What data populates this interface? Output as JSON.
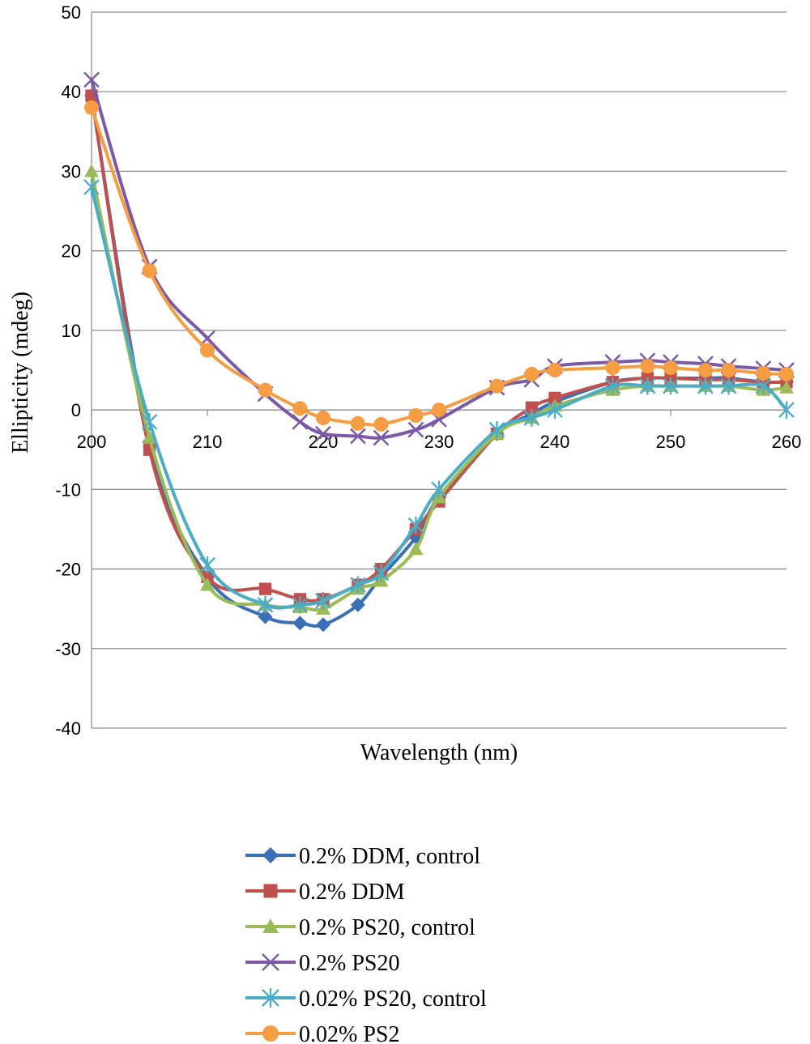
{
  "chart_data": {
    "type": "line",
    "xlabel": "Wavelength (nm)",
    "ylabel": "Ellipticity (mdeg)",
    "xlim": [
      200,
      260
    ],
    "ylim": [
      -40,
      50
    ],
    "x_ticks": [
      200,
      210,
      220,
      230,
      240,
      250,
      260
    ],
    "y_ticks": [
      50,
      40,
      30,
      20,
      10,
      0,
      -10,
      -20,
      -30,
      -40
    ],
    "grid": "horizontal",
    "legend_position": "bottom",
    "series": [
      {
        "name": "0.2% DDM, control",
        "color": "#3a6fb5",
        "marker": "diamond",
        "x": [
          200,
          205,
          210,
          215,
          218,
          220,
          223,
          225,
          228,
          230,
          235,
          238,
          240,
          245,
          248,
          250,
          253,
          255,
          258,
          260
        ],
        "y": [
          39.5,
          -4,
          -21,
          -26,
          -26.8,
          -27,
          -24.5,
          -21,
          -16,
          -11,
          -3,
          -0.5,
          1,
          3.5,
          4,
          4,
          4,
          4,
          3.5,
          3.5
        ]
      },
      {
        "name": "0.2% DDM",
        "color": "#c0504d",
        "marker": "square",
        "x": [
          200,
          205,
          210,
          215,
          218,
          220,
          223,
          225,
          228,
          230,
          235,
          238,
          240,
          245,
          248,
          250,
          253,
          255,
          258,
          260
        ],
        "y": [
          39.5,
          -5,
          -21,
          -22.5,
          -23.8,
          -23.8,
          -22,
          -20,
          -15,
          -11.5,
          -3,
          0.3,
          1.5,
          3.5,
          4,
          4,
          3.8,
          3.8,
          3.5,
          3.5
        ]
      },
      {
        "name": "0.2% PS20, control",
        "color": "#9bbb59",
        "marker": "triangle",
        "x": [
          200,
          205,
          210,
          215,
          218,
          220,
          223,
          225,
          228,
          230,
          235,
          238,
          240,
          245,
          248,
          250,
          253,
          255,
          258,
          260
        ],
        "y": [
          30,
          -3.5,
          -22,
          -24.5,
          -24.8,
          -25,
          -22.5,
          -21.5,
          -17.5,
          -11,
          -3,
          -1,
          0.5,
          2.5,
          3,
          3,
          3,
          3,
          2.5,
          2.8
        ]
      },
      {
        "name": "0.2% PS20",
        "color": "#7b59a6",
        "marker": "x",
        "x": [
          200,
          205,
          210,
          215,
          218,
          220,
          223,
          225,
          228,
          230,
          235,
          238,
          240,
          245,
          248,
          250,
          253,
          255,
          258,
          260
        ],
        "y": [
          41.5,
          18,
          9,
          2,
          -1.5,
          -3,
          -3.3,
          -3.5,
          -2.5,
          -1.2,
          2.8,
          3.8,
          5.5,
          6,
          6.2,
          6,
          5.8,
          5.5,
          5.2,
          5
        ]
      },
      {
        "name": "0.02% PS20, control",
        "color": "#4bacc6",
        "marker": "star",
        "x": [
          200,
          205,
          210,
          215,
          218,
          220,
          223,
          225,
          228,
          230,
          235,
          238,
          240,
          245,
          248,
          250,
          253,
          255,
          258,
          260
        ],
        "y": [
          28,
          -1.5,
          -19.5,
          -24.5,
          -24.5,
          -24,
          -22,
          -20.5,
          -14.5,
          -10,
          -2.5,
          -1,
          0,
          3,
          3,
          3,
          3,
          3,
          3,
          0
        ]
      },
      {
        "name": "0.02% PS2",
        "color": "#f59d42",
        "marker": "circle",
        "x": [
          200,
          205,
          210,
          215,
          218,
          220,
          223,
          225,
          228,
          230,
          235,
          238,
          240,
          245,
          248,
          250,
          253,
          255,
          258,
          260
        ],
        "y": [
          38,
          17.5,
          7.5,
          2.5,
          0.2,
          -1,
          -1.7,
          -1.8,
          -0.7,
          0,
          3,
          4.5,
          5,
          5.3,
          5.5,
          5.3,
          5,
          5,
          4.6,
          4.5
        ]
      }
    ]
  }
}
